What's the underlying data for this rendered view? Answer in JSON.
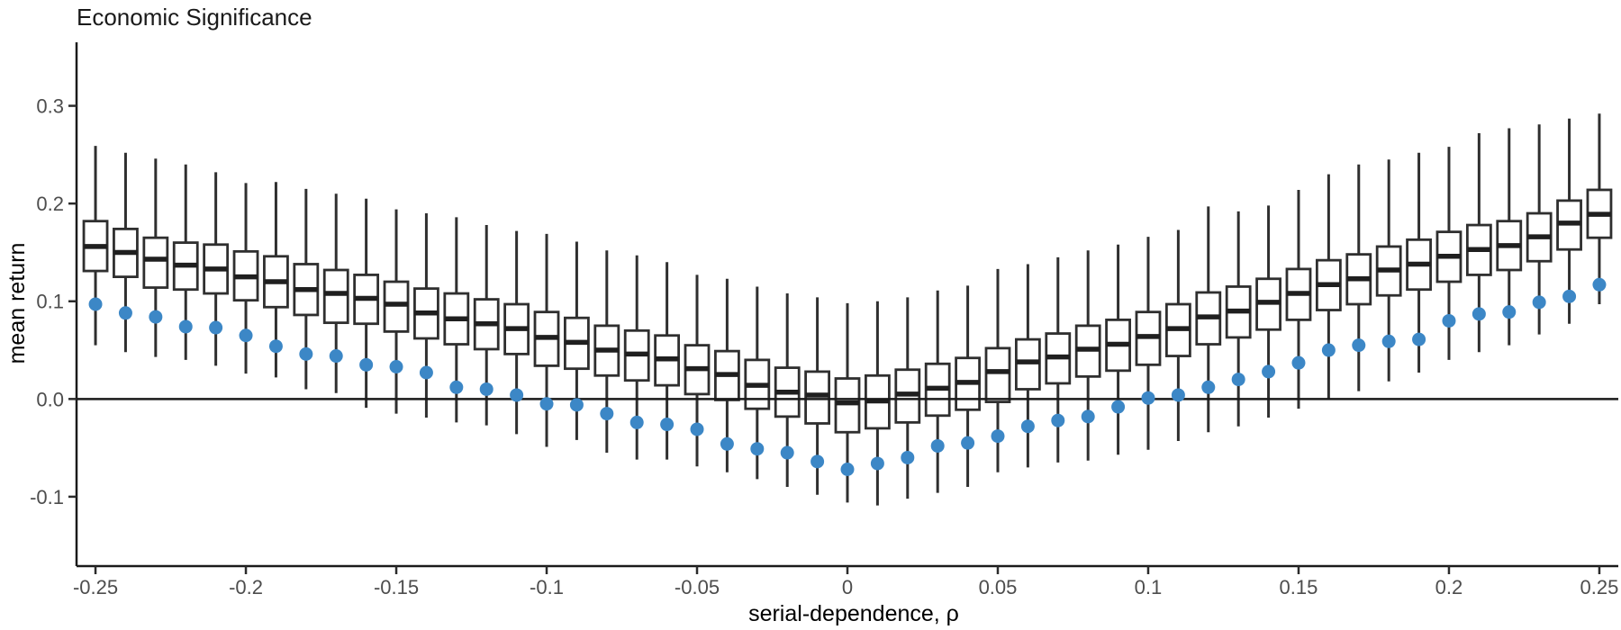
{
  "chart_data": {
    "type": "boxplot+scatter",
    "title": "Economic Significance",
    "xlabel": "serial-dependence,  ρ",
    "ylabel": "mean return",
    "legend": "none",
    "grid": "off",
    "xlim": [
      -0.2563,
      0.2563
    ],
    "ylim": [
      -0.171,
      0.365
    ],
    "x_ticks": [
      {
        "v": -0.25,
        "label": "-0.25"
      },
      {
        "v": -0.2,
        "label": "-0.2"
      },
      {
        "v": -0.15,
        "label": "-0.15"
      },
      {
        "v": -0.1,
        "label": "-0.1"
      },
      {
        "v": -0.05,
        "label": "-0.05"
      },
      {
        "v": 0,
        "label": "0"
      },
      {
        "v": 0.05,
        "label": "0.05"
      },
      {
        "v": 0.1,
        "label": "0.1"
      },
      {
        "v": 0.15,
        "label": "0.15"
      },
      {
        "v": 0.2,
        "label": "0.2"
      },
      {
        "v": 0.25,
        "label": "0.25"
      }
    ],
    "y_ticks": [
      {
        "v": 0.3,
        "label": "0.3"
      },
      {
        "v": 0.2,
        "label": "0.2"
      },
      {
        "v": 0.1,
        "label": "0.1"
      },
      {
        "v": 0,
        "label": "0.0"
      },
      {
        "v": -0.1,
        "label": "-0.1"
      }
    ],
    "zero_line_y": 0,
    "rho": [
      -0.25,
      -0.24,
      -0.23,
      -0.22,
      -0.21,
      -0.2,
      -0.19,
      -0.18,
      -0.17,
      -0.16,
      -0.15,
      -0.14,
      -0.13,
      -0.12,
      -0.11,
      -0.1,
      -0.09,
      -0.08,
      -0.07,
      -0.06,
      -0.05,
      -0.04,
      -0.03,
      -0.02,
      -0.01,
      0,
      0.01,
      0.02,
      0.03,
      0.04,
      0.05,
      0.06,
      0.07,
      0.08,
      0.09,
      0.1,
      0.11,
      0.12,
      0.13,
      0.14,
      0.15,
      0.16,
      0.17,
      0.18,
      0.19,
      0.2,
      0.21,
      0.22,
      0.23,
      0.24,
      0.25
    ],
    "boxes": {
      "lower_whisker": [
        0.055,
        0.048,
        0.043,
        0.04,
        0.034,
        0.026,
        0.022,
        0.01,
        0.006,
        -0.009,
        -0.015,
        -0.019,
        -0.024,
        -0.027,
        -0.036,
        -0.049,
        -0.042,
        -0.055,
        -0.062,
        -0.062,
        -0.069,
        -0.075,
        -0.082,
        -0.09,
        -0.098,
        -0.106,
        -0.109,
        -0.102,
        -0.096,
        -0.09,
        -0.075,
        -0.07,
        -0.065,
        -0.063,
        -0.057,
        -0.052,
        -0.043,
        -0.034,
        -0.028,
        -0.019,
        -0.01,
        0.0,
        0.008,
        0.018,
        0.027,
        0.04,
        0.048,
        0.055,
        0.066,
        0.077,
        0.097
      ],
      "q1": [
        0.131,
        0.125,
        0.114,
        0.112,
        0.108,
        0.101,
        0.094,
        0.086,
        0.078,
        0.077,
        0.069,
        0.062,
        0.056,
        0.051,
        0.046,
        0.034,
        0.031,
        0.024,
        0.019,
        0.014,
        0.005,
        -0.001,
        -0.01,
        -0.018,
        -0.025,
        -0.034,
        -0.03,
        -0.024,
        -0.017,
        -0.011,
        -0.003,
        0.01,
        0.016,
        0.023,
        0.029,
        0.035,
        0.044,
        0.056,
        0.063,
        0.071,
        0.081,
        0.091,
        0.097,
        0.106,
        0.112,
        0.12,
        0.127,
        0.132,
        0.141,
        0.153,
        0.165
      ],
      "median": [
        0.156,
        0.15,
        0.143,
        0.137,
        0.133,
        0.125,
        0.12,
        0.112,
        0.108,
        0.103,
        0.097,
        0.088,
        0.082,
        0.077,
        0.072,
        0.063,
        0.058,
        0.05,
        0.046,
        0.041,
        0.031,
        0.025,
        0.014,
        0.007,
        0.004,
        -0.004,
        -0.002,
        0.005,
        0.011,
        0.017,
        0.028,
        0.038,
        0.043,
        0.051,
        0.056,
        0.064,
        0.072,
        0.084,
        0.09,
        0.099,
        0.108,
        0.117,
        0.123,
        0.132,
        0.138,
        0.146,
        0.153,
        0.157,
        0.166,
        0.18,
        0.189
      ],
      "q3": [
        0.182,
        0.174,
        0.165,
        0.16,
        0.158,
        0.151,
        0.146,
        0.138,
        0.132,
        0.127,
        0.12,
        0.113,
        0.108,
        0.102,
        0.097,
        0.089,
        0.083,
        0.075,
        0.07,
        0.065,
        0.055,
        0.049,
        0.04,
        0.032,
        0.028,
        0.021,
        0.024,
        0.03,
        0.036,
        0.042,
        0.052,
        0.061,
        0.067,
        0.075,
        0.081,
        0.089,
        0.097,
        0.109,
        0.115,
        0.123,
        0.133,
        0.142,
        0.148,
        0.156,
        0.163,
        0.171,
        0.178,
        0.182,
        0.19,
        0.203,
        0.214
      ],
      "upper_whisker": [
        0.259,
        0.252,
        0.246,
        0.24,
        0.232,
        0.221,
        0.222,
        0.215,
        0.21,
        0.205,
        0.194,
        0.19,
        0.186,
        0.178,
        0.172,
        0.169,
        0.161,
        0.152,
        0.147,
        0.14,
        0.127,
        0.123,
        0.115,
        0.108,
        0.104,
        0.098,
        0.1,
        0.104,
        0.111,
        0.116,
        0.133,
        0.138,
        0.145,
        0.152,
        0.158,
        0.166,
        0.173,
        0.197,
        0.192,
        0.198,
        0.214,
        0.23,
        0.24,
        0.245,
        0.252,
        0.258,
        0.272,
        0.277,
        0.281,
        0.287,
        0.292
      ]
    },
    "dots": [
      0.097,
      0.088,
      0.084,
      0.074,
      0.073,
      0.065,
      0.054,
      0.046,
      0.044,
      0.035,
      0.033,
      0.027,
      0.012,
      0.01,
      0.004,
      -0.005,
      -0.006,
      -0.015,
      -0.024,
      -0.026,
      -0.031,
      -0.046,
      -0.051,
      -0.055,
      -0.064,
      -0.072,
      -0.066,
      -0.06,
      -0.048,
      -0.045,
      -0.038,
      -0.028,
      -0.022,
      -0.018,
      -0.008,
      0.001,
      0.004,
      0.012,
      0.02,
      0.028,
      0.037,
      0.05,
      0.055,
      0.059,
      0.061,
      0.08,
      0.087,
      0.089,
      0.099,
      0.105,
      0.117
    ],
    "colors": {
      "background": "#ffffff",
      "box_fill": "#ffffff",
      "box_border": "#2f2f2f",
      "median": "#1f1f1f",
      "whisker": "#2f2f2f",
      "dot": "#3c87c6",
      "axis_line": "#1a1a1a",
      "tick_mark": "#2b2b2b",
      "tick_label": "#4d4d4d",
      "title": "#1a1a1a",
      "zero_line": "#1a1a1a"
    }
  }
}
